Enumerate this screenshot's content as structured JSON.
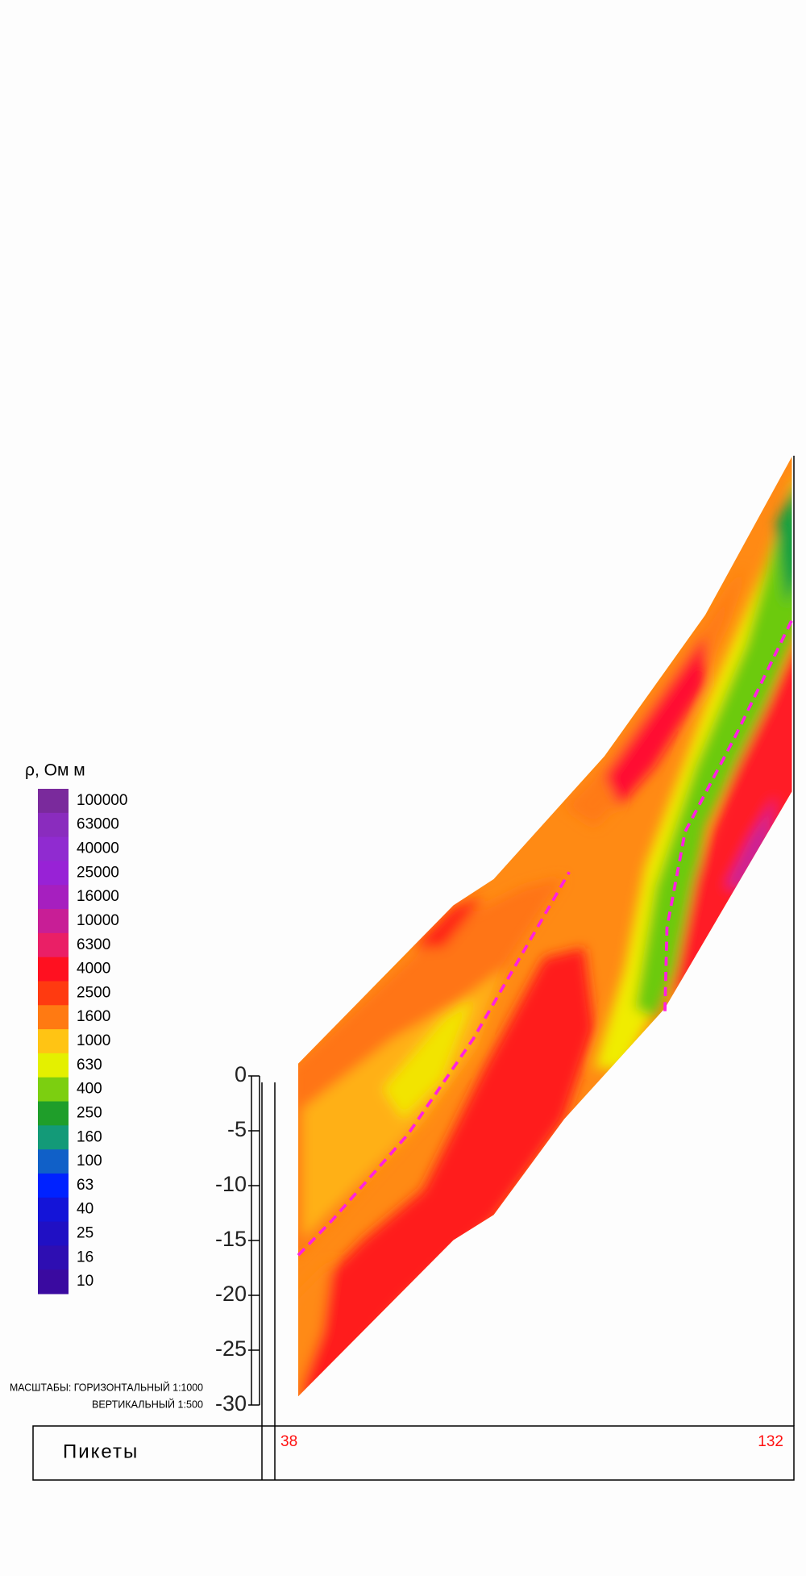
{
  "legend": {
    "title": "ρ, Ом м",
    "levels": [
      {
        "value": 100000,
        "color": "#7a2a9c"
      },
      {
        "value": 63000,
        "color": "#8a2cbe"
      },
      {
        "value": 40000,
        "color": "#902bd0"
      },
      {
        "value": 25000,
        "color": "#9822d6"
      },
      {
        "value": 16000,
        "color": "#a61fbf"
      },
      {
        "value": 10000,
        "color": "#c81e96"
      },
      {
        "value": 6300,
        "color": "#ea1f66"
      },
      {
        "value": 4000,
        "color": "#ff1020"
      },
      {
        "value": 2500,
        "color": "#ff3a10"
      },
      {
        "value": 1600,
        "color": "#ff7a12"
      },
      {
        "value": 1000,
        "color": "#ffc414"
      },
      {
        "value": 630,
        "color": "#e4f000"
      },
      {
        "value": 400,
        "color": "#7ccf10"
      },
      {
        "value": 250,
        "color": "#1f9e2a"
      },
      {
        "value": 160,
        "color": "#139a78"
      },
      {
        "value": 100,
        "color": "#1060c8"
      },
      {
        "value": 63,
        "color": "#0022ff"
      },
      {
        "value": 40,
        "color": "#1414d8"
      },
      {
        "value": 25,
        "color": "#2010c4"
      },
      {
        "value": 16,
        "color": "#2e0eb2"
      },
      {
        "value": 10,
        "color": "#3a0aa0"
      }
    ]
  },
  "depth": {
    "ylim": [
      -30,
      0
    ],
    "ticks": [
      0,
      -5,
      -10,
      -15,
      -20,
      -25,
      -30
    ]
  },
  "scale": {
    "horizontal": "МАСШТАБЫ: ГОРИЗОНТАЛЬНЫЙ 1:1000",
    "vertical": "ВЕРТИКАЛЬНЫЙ 1:500"
  },
  "pickets": {
    "label": "Пикеты",
    "start": 38,
    "end": 132
  }
}
